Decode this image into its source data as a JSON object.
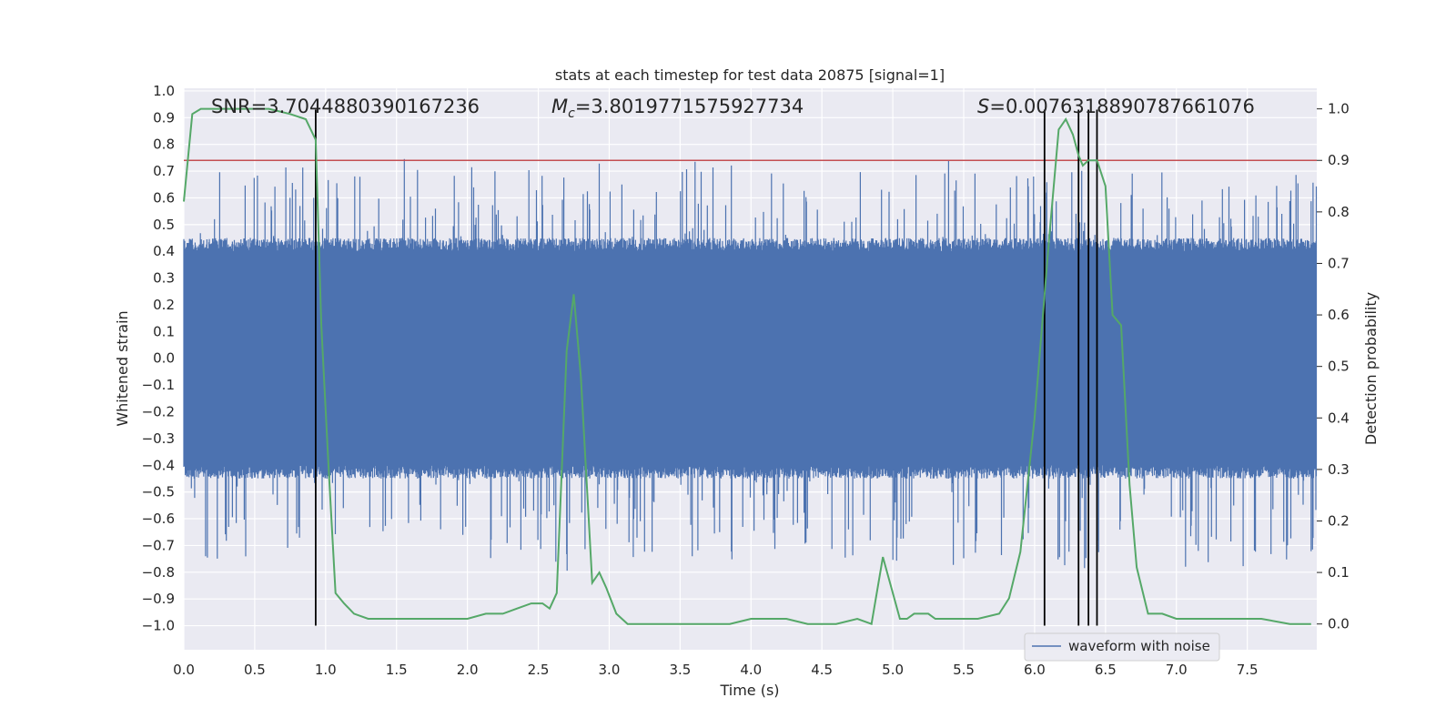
{
  "chart_data": {
    "type": "line",
    "title": "stats at each timestep for test data 20875 [signal=1]",
    "xlabel": "Time (s)",
    "ylabel_left": "Whitened strain",
    "ylabel_right": "Detection probability",
    "xlim": [
      0.0,
      7.99
    ],
    "ylim_left": [
      -1.09,
      1.01
    ],
    "ylim_right": [
      -0.05,
      1.04
    ],
    "x_ticks": [
      0.0,
      0.5,
      1.0,
      1.5,
      2.0,
      2.5,
      3.0,
      3.5,
      4.0,
      4.5,
      5.0,
      5.5,
      6.0,
      6.5,
      7.0,
      7.5
    ],
    "x_tick_labels": [
      "0.0",
      "0.5",
      "1.0",
      "1.5",
      "2.0",
      "2.5",
      "3.0",
      "3.5",
      "4.0",
      "4.5",
      "5.0",
      "5.5",
      "6.0",
      "6.5",
      "7.0",
      "7.5"
    ],
    "y_left_ticks": [
      1.0,
      0.9,
      0.8,
      0.7,
      0.6,
      0.5,
      0.4,
      0.3,
      0.2,
      0.1,
      0.0,
      -0.1,
      -0.2,
      -0.3,
      -0.4,
      -0.5,
      -0.6,
      -0.7,
      -0.8,
      -0.9,
      -1.0
    ],
    "y_left_tick_labels": [
      "1.0",
      "0.9",
      "0.8",
      "0.7",
      "0.6",
      "0.5",
      "0.4",
      "0.3",
      "0.2",
      "0.1",
      "0.0",
      "−0.1",
      "−0.2",
      "−0.3",
      "−0.4",
      "−0.5",
      "−0.6",
      "−0.7",
      "−0.8",
      "−0.9",
      "−1.0"
    ],
    "y_right_ticks": [
      1.0,
      0.9,
      0.8,
      0.7,
      0.6,
      0.5,
      0.4,
      0.3,
      0.2,
      0.1,
      0.0
    ],
    "y_right_tick_labels": [
      "1.0",
      "0.9",
      "0.8",
      "0.7",
      "0.6",
      "0.5",
      "0.4",
      "0.3",
      "0.2",
      "0.1",
      "0.0"
    ],
    "annotations": {
      "snr_text": "SNR=3.7044880390167236",
      "mc_symbol": "M",
      "mc_subscript": "c",
      "mc_value": "=3.8019771575927734",
      "s_symbol": "S",
      "s_value": "=0.007631889078766107​6"
    },
    "threshold": {
      "axis": "right",
      "value": 0.9,
      "color": "#c44e52"
    },
    "vertical_lines": {
      "x": [
        0.93,
        6.07,
        6.31,
        6.38,
        6.44
      ],
      "ymin": -1.0,
      "ymax": 0.93,
      "color": "#000000"
    },
    "waveform": {
      "name": "waveform with noise",
      "color": "#4c72b0",
      "envelope_left_axis": 0.4,
      "peak_max": 0.92,
      "peak_min": -1.0
    },
    "detection_probability": {
      "name": "detection probability",
      "color": "#55a868",
      "x": [
        0.0,
        0.06,
        0.12,
        0.2,
        0.3,
        0.45,
        0.6,
        0.75,
        0.86,
        0.93,
        0.97,
        1.02,
        1.07,
        1.13,
        1.2,
        1.3,
        1.5,
        1.7,
        1.9,
        2.0,
        2.13,
        2.25,
        2.35,
        2.45,
        2.53,
        2.58,
        2.63,
        2.7,
        2.75,
        2.8,
        2.88,
        2.93,
        2.98,
        3.05,
        3.13,
        3.3,
        3.5,
        3.7,
        3.85,
        4.0,
        4.15,
        4.25,
        4.4,
        4.6,
        4.75,
        4.85,
        4.93,
        4.98,
        5.05,
        5.1,
        5.15,
        5.25,
        5.3,
        5.45,
        5.6,
        5.75,
        5.82,
        5.9,
        6.0,
        6.1,
        6.17,
        6.22,
        6.27,
        6.31,
        6.34,
        6.38,
        6.44,
        6.5,
        6.55,
        6.61,
        6.67,
        6.72,
        6.8,
        6.85,
        6.9,
        7.0,
        7.1,
        7.2,
        7.3,
        7.35,
        7.45,
        7.6,
        7.8,
        7.95
      ],
      "y": [
        0.82,
        0.99,
        1.0,
        1.0,
        1.0,
        1.0,
        1.0,
        0.99,
        0.98,
        0.94,
        0.58,
        0.31,
        0.06,
        0.04,
        0.02,
        0.01,
        0.01,
        0.01,
        0.01,
        0.01,
        0.02,
        0.02,
        0.03,
        0.04,
        0.04,
        0.03,
        0.06,
        0.53,
        0.64,
        0.48,
        0.08,
        0.1,
        0.07,
        0.02,
        0.0,
        0.0,
        0.0,
        0.0,
        0.0,
        0.01,
        0.01,
        0.01,
        0.0,
        0.0,
        0.01,
        0.0,
        0.13,
        0.08,
        0.01,
        0.01,
        0.02,
        0.02,
        0.01,
        0.01,
        0.01,
        0.02,
        0.05,
        0.14,
        0.4,
        0.74,
        0.96,
        0.98,
        0.95,
        0.91,
        0.89,
        0.9,
        0.9,
        0.85,
        0.6,
        0.58,
        0.27,
        0.11,
        0.02,
        0.02,
        0.02,
        0.01,
        0.01,
        0.01,
        0.01,
        0.01,
        0.01,
        0.01,
        0.0,
        0.0
      ]
    },
    "legend": {
      "location": "lower-right",
      "entries": [
        "waveform with noise"
      ]
    },
    "grid": true
  }
}
